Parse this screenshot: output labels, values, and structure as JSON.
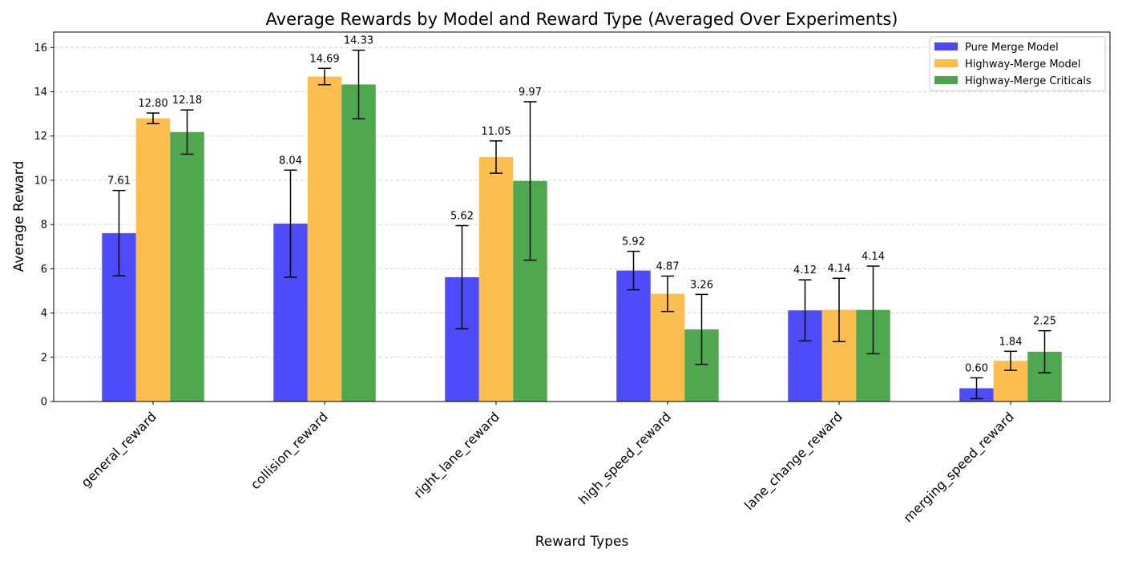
{
  "chart_data": {
    "type": "bar",
    "title": "Average Rewards by Model and Reward Type (Averaged Over Experiments)",
    "xlabel": "Reward Types",
    "ylabel": "Average Reward",
    "ylim": [
      0,
      16.7
    ],
    "yticks": [
      "0",
      "2",
      "4",
      "6",
      "8",
      "10",
      "12",
      "14",
      "16"
    ],
    "grid": "horizontal dashed",
    "legend_position": "top-right",
    "categories": [
      "general_reward",
      "collision_reward",
      "right_lane_reward",
      "high_speed_reward",
      "lane_change_reward",
      "merging_speed_reward"
    ],
    "series": [
      {
        "name": "Pure Merge Model",
        "color": "#4a48fa",
        "values": [
          7.61,
          8.04,
          5.62,
          5.92,
          4.12,
          0.6
        ],
        "labels": [
          "7.61",
          "8.04",
          "5.62",
          "5.92",
          "4.12",
          "0.60"
        ],
        "errors": [
          1.93,
          2.42,
          2.33,
          0.87,
          1.38,
          0.47
        ]
      },
      {
        "name": "Highway-Merge Model",
        "color": "#fdbd4c",
        "values": [
          12.8,
          14.69,
          11.05,
          4.87,
          4.14,
          1.84
        ],
        "labels": [
          "12.80",
          "14.69",
          "11.05",
          "4.87",
          "4.14",
          "1.84"
        ],
        "errors": [
          0.24,
          0.37,
          0.73,
          0.8,
          1.43,
          0.43
        ]
      },
      {
        "name": "Highway-Merge Criticals",
        "color": "#4ba64b",
        "values": [
          12.18,
          14.33,
          9.97,
          3.26,
          4.14,
          2.25
        ],
        "labels": [
          "12.18",
          "14.33",
          "9.97",
          "3.26",
          "4.14",
          "2.25"
        ],
        "errors": [
          1.0,
          1.55,
          3.58,
          1.58,
          1.98,
          0.95
        ]
      }
    ]
  }
}
